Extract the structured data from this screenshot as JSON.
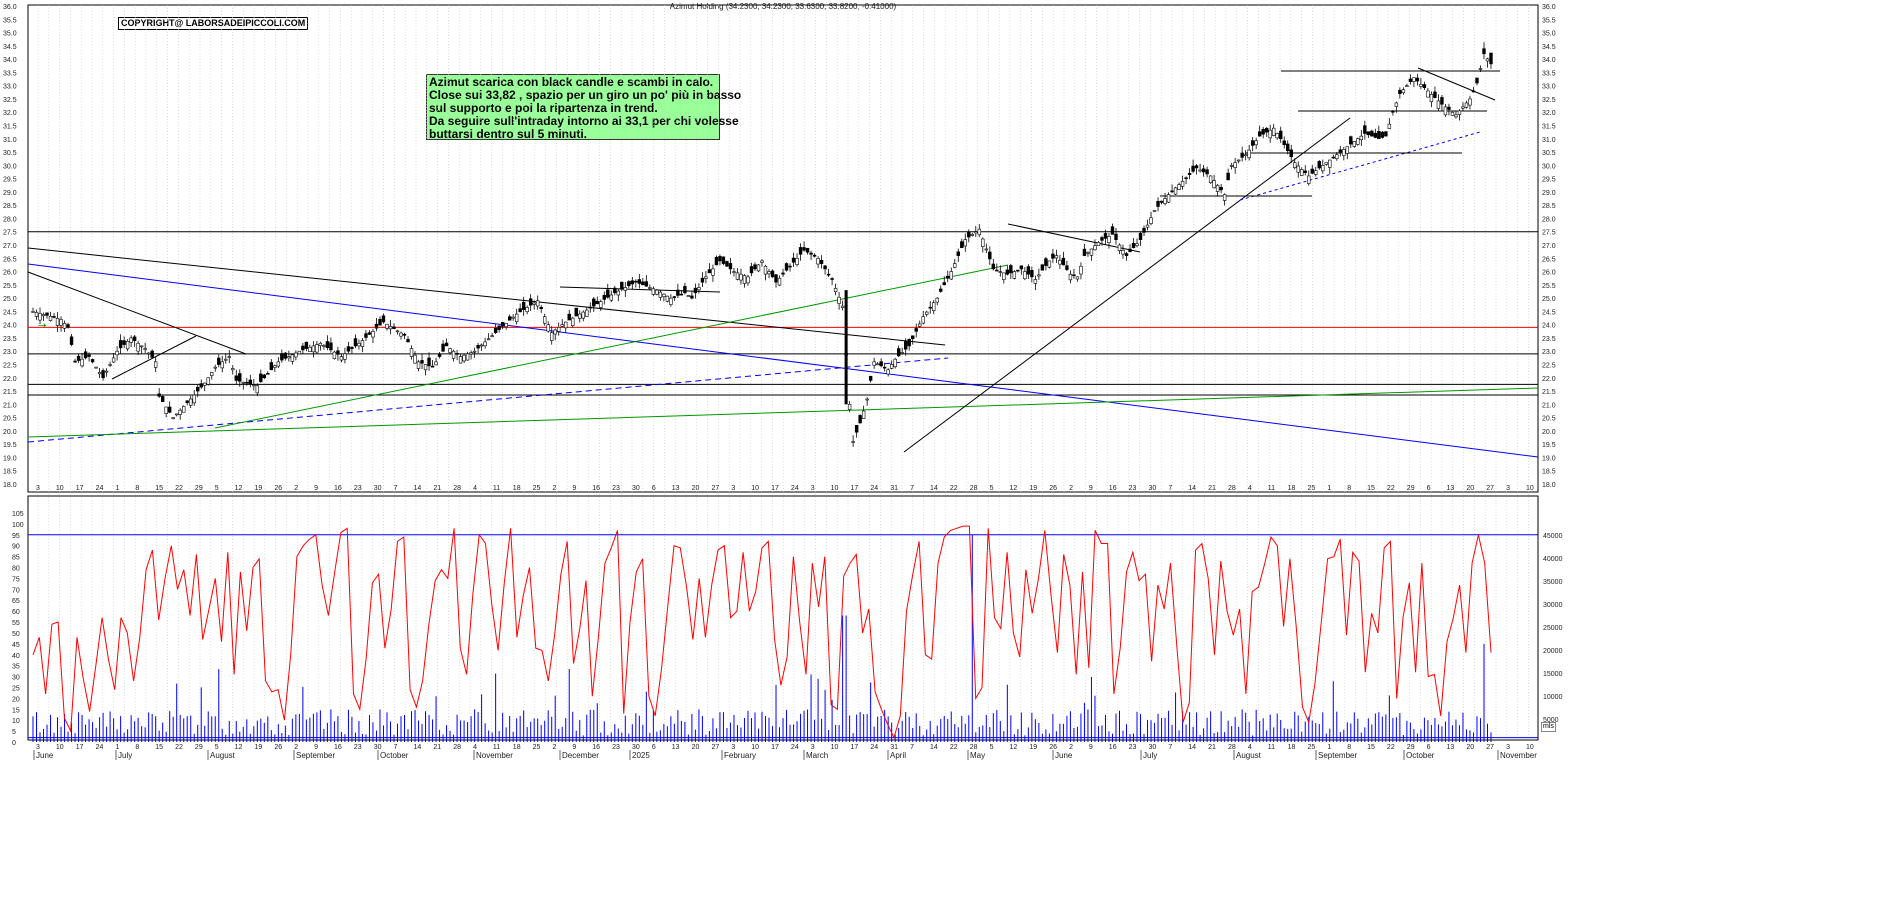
{
  "header": {
    "title": "Azimut Holding (34.2300, 34.2300, 33.6300, 33.8200, -0.41000)"
  },
  "copyright": "COPYRIGHT@ LABORSADEIPICCOLI.COM",
  "comment": {
    "lines": [
      "Azimut scarica con black candle e scambi in calo.",
      "Close sui 33,82 , spazio per un giro un po' più in basso",
      "sul supporto e poi la ripartenza in trend.",
      "Da seguire sull'intraday intorno ai 33,1 per chi volesse",
      "buttarsi dentro sul 5 minuti."
    ]
  },
  "unit_label": "mls",
  "colors": {
    "candle": "#000000",
    "rsi_line": "#ff0000",
    "volume_bars": "#0000ff",
    "bluelines": "#0000ff",
    "greenlines": "#009900",
    "support_red": "#ff0000",
    "comment_bg": "#99ff99"
  },
  "chart_data": [
    {
      "type": "candlestick",
      "title": "Azimut Holding (34.2300, 34.2300, 33.6300, 33.8200, -0.41000)",
      "ylim": [
        18.0,
        36.0
      ],
      "y_ticks": [
        "18.0",
        "18.5",
        "19.0",
        "19.5",
        "20.0",
        "20.5",
        "21.0",
        "21.5",
        "22.0",
        "22.5",
        "23.0",
        "23.5",
        "24.0",
        "24.5",
        "25.0",
        "25.5",
        "26.0",
        "26.5",
        "27.0",
        "27.5",
        "28.0",
        "28.5",
        "29.0",
        "29.5",
        "30.0",
        "30.5",
        "31.0",
        "31.5",
        "32.0",
        "32.5",
        "33.0",
        "33.5",
        "34.0",
        "34.5",
        "35.0",
        "35.5",
        "36.0"
      ],
      "last": {
        "open": 34.23,
        "high": 34.23,
        "low": 33.63,
        "close": 33.82,
        "change": -0.41
      },
      "price_path": [
        [
          0,
          24.5
        ],
        [
          8,
          24.2
        ],
        [
          10,
          23.9
        ],
        [
          12,
          22.6
        ],
        [
          16,
          22.8
        ],
        [
          20,
          22.0
        ],
        [
          24,
          23.0
        ],
        [
          28,
          23.5
        ],
        [
          32,
          23.1
        ],
        [
          35,
          22.6
        ],
        [
          36,
          21.3
        ],
        [
          40,
          20.5
        ],
        [
          45,
          21.2
        ],
        [
          49,
          21.8
        ],
        [
          52,
          22.4
        ],
        [
          56,
          22.8
        ],
        [
          58,
          21.9
        ],
        [
          64,
          21.7
        ],
        [
          70,
          22.6
        ],
        [
          76,
          23.0
        ],
        [
          82,
          23.3
        ],
        [
          88,
          22.8
        ],
        [
          94,
          23.4
        ],
        [
          100,
          24.1
        ],
        [
          106,
          23.6
        ],
        [
          110,
          22.6
        ],
        [
          114,
          22.4
        ],
        [
          118,
          23.2
        ],
        [
          122,
          22.8
        ],
        [
          126,
          23.0
        ],
        [
          132,
          23.7
        ],
        [
          138,
          24.4
        ],
        [
          144,
          24.9
        ],
        [
          148,
          23.7
        ],
        [
          152,
          24.1
        ],
        [
          156,
          24.4
        ],
        [
          160,
          24.7
        ],
        [
          166,
          25.2
        ],
        [
          172,
          25.6
        ],
        [
          178,
          25.3
        ],
        [
          182,
          25.0
        ],
        [
          186,
          25.2
        ],
        [
          188,
          25.0
        ],
        [
          192,
          25.8
        ],
        [
          196,
          26.4
        ],
        [
          200,
          26.0
        ],
        [
          204,
          25.8
        ],
        [
          208,
          26.4
        ],
        [
          212,
          25.6
        ],
        [
          216,
          26.2
        ],
        [
          220,
          26.8
        ],
        [
          224,
          26.5
        ],
        [
          228,
          25.7
        ],
        [
          231,
          24.7
        ],
        [
          233,
          21.0
        ],
        [
          234,
          19.6
        ],
        [
          236,
          20.3
        ],
        [
          238,
          21.2
        ],
        [
          240,
          22.6
        ],
        [
          244,
          22.3
        ],
        [
          246,
          22.7
        ],
        [
          250,
          23.2
        ],
        [
          254,
          24.3
        ],
        [
          258,
          25.0
        ],
        [
          262,
          26.0
        ],
        [
          266,
          27.2
        ],
        [
          270,
          27.6
        ],
        [
          274,
          26.1
        ],
        [
          278,
          25.9
        ],
        [
          282,
          26.1
        ],
        [
          286,
          25.7
        ],
        [
          290,
          26.4
        ],
        [
          292,
          26.6
        ],
        [
          296,
          25.9
        ],
        [
          298,
          25.8
        ],
        [
          300,
          26.6
        ],
        [
          304,
          27.1
        ],
        [
          308,
          27.4
        ],
        [
          312,
          26.6
        ],
        [
          316,
          27.2
        ],
        [
          320,
          28.3
        ],
        [
          324,
          28.9
        ],
        [
          328,
          29.4
        ],
        [
          332,
          29.9
        ],
        [
          336,
          29.6
        ],
        [
          340,
          28.9
        ],
        [
          342,
          30.0
        ],
        [
          346,
          30.4
        ],
        [
          350,
          31.1
        ],
        [
          354,
          31.4
        ],
        [
          356,
          31.0
        ],
        [
          360,
          30.1
        ],
        [
          364,
          29.6
        ],
        [
          368,
          30.0
        ],
        [
          372,
          30.4
        ],
        [
          376,
          30.8
        ],
        [
          380,
          31.2
        ],
        [
          384,
          31.0
        ],
        [
          386,
          31.1
        ],
        [
          388,
          32.0
        ],
        [
          390,
          32.7
        ],
        [
          394,
          33.3
        ],
        [
          398,
          32.8
        ],
        [
          402,
          32.3
        ],
        [
          406,
          31.9
        ],
        [
          410,
          32.5
        ],
        [
          412,
          33.1
        ],
        [
          414,
          34.2
        ],
        [
          416,
          33.82
        ]
      ],
      "horizontal_levels": [
        {
          "value": 27.5,
          "color": "black"
        },
        {
          "value": 23.9,
          "color": "red"
        },
        {
          "value": 22.9,
          "color": "black"
        },
        {
          "value": 21.75,
          "color": "black"
        },
        {
          "value": 21.35,
          "color": "black"
        }
      ],
      "x_months": [
        "June",
        "July",
        "August",
        "September",
        "October",
        "November",
        "December",
        "2025",
        "February",
        "March",
        "April",
        "May",
        "June",
        "July",
        "August",
        "September",
        "October",
        "November"
      ],
      "x_days": [
        "3",
        "10",
        "17",
        "24",
        "1",
        "8",
        "15",
        "22",
        "29",
        "5",
        "12",
        "19",
        "26",
        "2",
        "9",
        "16",
        "23",
        "30",
        "7",
        "14",
        "21",
        "28",
        "4",
        "11",
        "18",
        "25",
        "2",
        "9",
        "16",
        "23",
        "30",
        "6",
        "13",
        "20",
        "27",
        "3",
        "10",
        "17",
        "24",
        "3",
        "10",
        "17",
        "24",
        "31",
        "7",
        "14",
        "22",
        "28",
        "5",
        "12",
        "19",
        "26",
        "2",
        "9",
        "16",
        "23",
        "30",
        "7",
        "14",
        "21",
        "28",
        "4",
        "11",
        "18",
        "25",
        "1",
        "8",
        "15",
        "22",
        "29",
        "6",
        "13",
        "20",
        "27",
        "3",
        "10"
      ]
    },
    {
      "type": "line",
      "name": "oscillator",
      "ylim": [
        0,
        100
      ],
      "y_ticks": [
        "0",
        "5",
        "10",
        "15",
        "20",
        "25",
        "30",
        "35",
        "40",
        "45",
        "50",
        "55",
        "60",
        "65",
        "70",
        "75",
        "80",
        "85",
        "90",
        "95",
        "100",
        "105"
      ],
      "reference_line": 95,
      "values": [
        40,
        48,
        22,
        54,
        55,
        11,
        5,
        48,
        29,
        14,
        35,
        57,
        38,
        24,
        57,
        50,
        28,
        48,
        79,
        88,
        56,
        75,
        90,
        70,
        79,
        58,
        86,
        47,
        61,
        75,
        46,
        87,
        31,
        78,
        51,
        80,
        84,
        28,
        23,
        24,
        10,
        40,
        85,
        90,
        93,
        95,
        72,
        58,
        78,
        96,
        98,
        22,
        15,
        38,
        73,
        77,
        43,
        61,
        92,
        94,
        24,
        16,
        28,
        54,
        74,
        79,
        75,
        98,
        43,
        31,
        68,
        95,
        91,
        63,
        42,
        73,
        98,
        48,
        67,
        80,
        43,
        42,
        28,
        49,
        77,
        92,
        36,
        52,
        74,
        21,
        49,
        82,
        89,
        97,
        13,
        55,
        78,
        84,
        21,
        12,
        33,
        62,
        90,
        89,
        71,
        47,
        75,
        48,
        72,
        88,
        90,
        57,
        60,
        87,
        60,
        69,
        89,
        92,
        47,
        26,
        39,
        85,
        55,
        31,
        82,
        62,
        85,
        17,
        15,
        76,
        82,
        86,
        50,
        61,
        23,
        15,
        8,
        2,
        12,
        60,
        77,
        92,
        40,
        38,
        82,
        94,
        97,
        98,
        99,
        99,
        20,
        25,
        98,
        57,
        52,
        87,
        50,
        39,
        79,
        59,
        75,
        97,
        67,
        41,
        86,
        72,
        31,
        78,
        34,
        97,
        91,
        91,
        22,
        43,
        78,
        87,
        74,
        77,
        37,
        72,
        61,
        82,
        44,
        9,
        18,
        88,
        91,
        75,
        40,
        83,
        60,
        49,
        61,
        22,
        69,
        71,
        82,
        94,
        90,
        53,
        84,
        53,
        16,
        9,
        27,
        55,
        84,
        85,
        93,
        49,
        87,
        83,
        32,
        59,
        50,
        89,
        92,
        20,
        57,
        73,
        32,
        82,
        30,
        31,
        12,
        46,
        57,
        72,
        41,
        82,
        95,
        82,
        41
      ]
    },
    {
      "type": "bar",
      "name": "volume",
      "ylim": [
        0,
        45000
      ],
      "y_ticks": [
        "5000",
        "10000",
        "15000",
        "20000",
        "25000",
        "30000",
        "35000",
        "40000",
        "45000"
      ]
    }
  ]
}
